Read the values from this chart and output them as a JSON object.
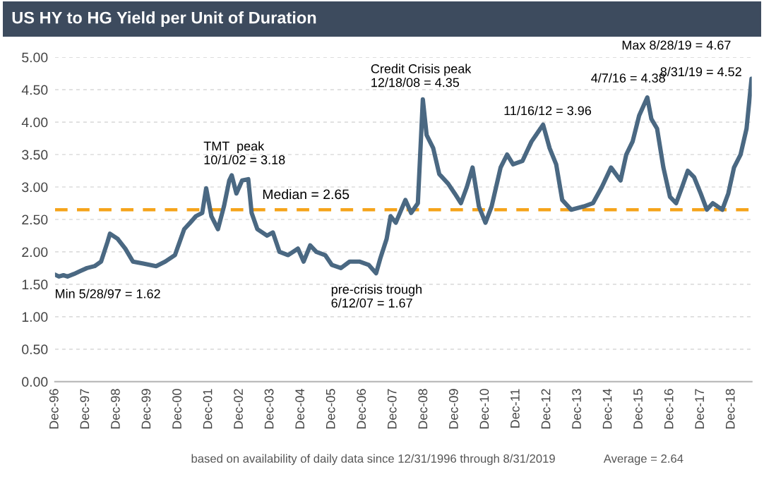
{
  "chart_data": {
    "type": "line",
    "title": "US HY to HG Yield per Unit of Duration",
    "x": [
      "1996-12-31",
      "1997-02-15",
      "1997-04-10",
      "1997-05-28",
      "1997-08-15",
      "1997-10-20",
      "1998-01-15",
      "1998-04-15",
      "1998-07-01",
      "1998-09-15",
      "1998-10-15",
      "1999-01-15",
      "1999-04-15",
      "1999-07-15",
      "1999-11-15",
      "2000-04-15",
      "2000-08-01",
      "2000-11-25",
      "2001-03-15",
      "2001-05-25",
      "2001-08-01",
      "2001-10-15",
      "2001-12-01",
      "2002-02-01",
      "2002-04-20",
      "2002-06-30",
      "2002-09-01",
      "2002-10-01",
      "2002-11-25",
      "2003-02-01",
      "2003-04-15",
      "2003-05-25",
      "2003-08-01",
      "2003-11-25",
      "2004-02-01",
      "2004-04-20",
      "2004-08-01",
      "2004-11-25",
      "2005-02-01",
      "2005-04-20",
      "2005-07-01",
      "2005-10-15",
      "2006-01-01",
      "2006-04-20",
      "2006-08-01",
      "2006-11-25",
      "2007-03-15",
      "2007-06-12",
      "2007-08-01",
      "2007-10-15",
      "2007-12-01",
      "2008-02-01",
      "2008-05-25",
      "2008-08-01",
      "2008-10-20",
      "2008-12-18",
      "2009-02-01",
      "2009-04-20",
      "2009-07-01",
      "2009-10-15",
      "2010-01-01",
      "2010-03-15",
      "2010-05-25",
      "2010-08-01",
      "2010-10-15",
      "2011-01-01",
      "2011-03-15",
      "2011-06-30",
      "2011-09-15",
      "2011-11-25",
      "2012-03-15",
      "2012-07-01",
      "2012-11-16",
      "2013-02-01",
      "2013-04-20",
      "2013-07-01",
      "2013-10-15",
      "2014-03-15",
      "2014-07-01",
      "2014-10-15",
      "2015-02-01",
      "2015-05-25",
      "2015-08-01",
      "2015-10-15",
      "2016-01-01",
      "2016-04-07",
      "2016-05-25",
      "2016-08-01",
      "2016-10-15",
      "2017-01-01",
      "2017-03-15",
      "2017-05-25",
      "2017-08-01",
      "2017-10-15",
      "2018-01-01",
      "2018-03-15",
      "2018-05-25",
      "2018-09-15",
      "2018-11-25",
      "2019-02-01",
      "2019-04-20",
      "2019-06-30",
      "2019-08-28",
      "2019-08-31"
    ],
    "series": [
      {
        "color": "#4a6882",
        "values": [
          1.65,
          1.62,
          1.64,
          1.62,
          1.66,
          1.7,
          1.75,
          1.78,
          1.85,
          2.15,
          2.28,
          2.2,
          2.05,
          1.85,
          1.82,
          1.78,
          1.85,
          1.95,
          2.35,
          2.45,
          2.55,
          2.6,
          2.98,
          2.55,
          2.35,
          2.7,
          3.1,
          3.18,
          2.9,
          3.1,
          3.12,
          2.6,
          2.35,
          2.25,
          2.3,
          2.0,
          1.95,
          2.05,
          1.85,
          2.1,
          2.0,
          1.95,
          1.8,
          1.75,
          1.85,
          1.85,
          1.8,
          1.67,
          1.9,
          2.2,
          2.55,
          2.45,
          2.8,
          2.6,
          2.75,
          4.35,
          3.8,
          3.6,
          3.2,
          3.05,
          2.9,
          2.75,
          3.0,
          3.3,
          2.7,
          2.45,
          2.7,
          3.3,
          3.5,
          3.35,
          3.4,
          3.7,
          3.96,
          3.6,
          3.35,
          2.8,
          2.65,
          2.7,
          2.75,
          3.0,
          3.3,
          3.1,
          3.5,
          3.7,
          4.1,
          4.38,
          4.05,
          3.9,
          3.3,
          2.85,
          2.75,
          3.0,
          3.25,
          3.15,
          2.9,
          2.65,
          2.75,
          2.65,
          2.9,
          3.3,
          3.5,
          3.9,
          4.67,
          4.52
        ]
      }
    ],
    "xlim": [
      "1996-12-31",
      "2019-08-31"
    ],
    "xticks": [
      {
        "value": "1996-12-31",
        "label": "Dec-96"
      },
      {
        "value": "1997-12-31",
        "label": "Dec-97"
      },
      {
        "value": "1998-12-31",
        "label": "Dec-98"
      },
      {
        "value": "1999-12-31",
        "label": "Dec-99"
      },
      {
        "value": "2000-12-31",
        "label": "Dec-00"
      },
      {
        "value": "2001-12-31",
        "label": "Dec-01"
      },
      {
        "value": "2002-12-31",
        "label": "Dec-02"
      },
      {
        "value": "2003-12-31",
        "label": "Dec-03"
      },
      {
        "value": "2004-12-31",
        "label": "Dec-04"
      },
      {
        "value": "2005-12-31",
        "label": "Dec-05"
      },
      {
        "value": "2006-12-31",
        "label": "Dec-06"
      },
      {
        "value": "2007-12-31",
        "label": "Dec-07"
      },
      {
        "value": "2008-12-31",
        "label": "Dec-08"
      },
      {
        "value": "2009-12-31",
        "label": "Dec-09"
      },
      {
        "value": "2010-12-31",
        "label": "Dec-10"
      },
      {
        "value": "2011-12-31",
        "label": "Dec-11"
      },
      {
        "value": "2012-12-31",
        "label": "Dec-12"
      },
      {
        "value": "2013-12-31",
        "label": "Dec-13"
      },
      {
        "value": "2014-12-31",
        "label": "Dec-14"
      },
      {
        "value": "2015-12-31",
        "label": "Dec-15"
      },
      {
        "value": "2016-12-31",
        "label": "Dec-16"
      },
      {
        "value": "2017-12-31",
        "label": "Dec-17"
      },
      {
        "value": "2018-12-31",
        "label": "Dec-18"
      }
    ],
    "ylim": [
      0,
      5
    ],
    "yticks": [
      {
        "value": 0,
        "label": "0.00"
      },
      {
        "value": 0.5,
        "label": "0.50"
      },
      {
        "value": 1,
        "label": "1.00"
      },
      {
        "value": 1.5,
        "label": "1.50"
      },
      {
        "value": 2,
        "label": "2.00"
      },
      {
        "value": 2.5,
        "label": "2.50"
      },
      {
        "value": 3,
        "label": "3.00"
      },
      {
        "value": 3.5,
        "label": "3.50"
      },
      {
        "value": 4,
        "label": "4.00"
      },
      {
        "value": 4.5,
        "label": "4.50"
      },
      {
        "value": 5,
        "label": "5.00"
      }
    ],
    "grid": "y",
    "ref_lines": [
      {
        "axis": "y",
        "value": 2.65,
        "label": "Median = 2.65",
        "color": "#f5a31a",
        "line_style": "dashed"
      }
    ],
    "annotations": [
      {
        "text": "Min 5/28/97 = 1.62",
        "x": "1997-05-28",
        "y": 1.62
      },
      {
        "text": "TMT  peak\n10/1/02 = 3.18",
        "x": "2002-10-01",
        "y": 3.18
      },
      {
        "text": "pre-crisis trough\n6/12/07 = 1.67",
        "x": "2007-06-12",
        "y": 1.67
      },
      {
        "text": "Credit Crisis peak\n12/18/08 = 4.35",
        "x": "2008-12-18",
        "y": 4.35
      },
      {
        "text": "11/16/12 = 3.96",
        "x": "2012-11-16",
        "y": 3.96
      },
      {
        "text": "4/7/16 = 4.38",
        "x": "2016-04-07",
        "y": 4.38
      },
      {
        "text": "Max 8/28/19 = 4.67",
        "x": "2019-08-28",
        "y": 4.67
      },
      {
        "text": "8/31/19 = 4.52",
        "x": "2019-08-31",
        "y": 4.52
      },
      "based on availability of daily data since 12/31/1996 through 8/31/2019",
      "Average = 2.64"
    ]
  }
}
